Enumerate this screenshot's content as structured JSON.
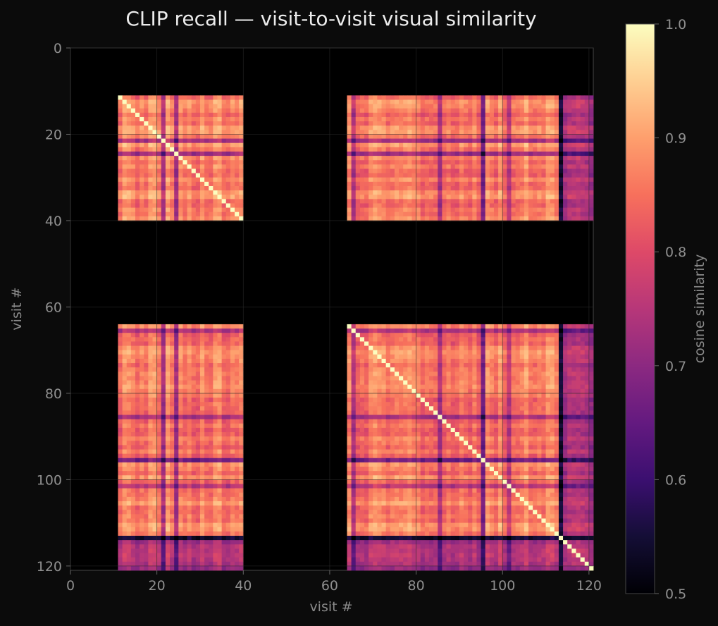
{
  "chart_data": {
    "type": "heatmap",
    "title": "CLIP recall — visit-to-visit visual similarity",
    "xlabel": "visit #",
    "ylabel": "visit #",
    "x_ticks": [
      0,
      20,
      40,
      60,
      80,
      100,
      120
    ],
    "y_ticks": [
      0,
      20,
      40,
      60,
      80,
      100,
      120
    ],
    "xlim": [
      0,
      121
    ],
    "ylim": [
      121,
      0
    ],
    "n_visits": 121,
    "colormap": "magma",
    "colorbar": {
      "label": "cosine similarity",
      "range": [
        0.5,
        1.0
      ],
      "ticks": [
        "0.5",
        "0.6",
        "0.7",
        "0.8",
        "0.9",
        "1.0"
      ]
    },
    "empty_value_color": "#050405",
    "visit_groups": [
      {
        "start": 11,
        "end": 39,
        "typical_similarity": 0.87
      },
      {
        "start": 64,
        "end": 112,
        "typical_similarity": 0.86
      },
      {
        "start": 113,
        "end": 113,
        "typical_similarity": 0.55
      },
      {
        "start": 114,
        "end": 120,
        "typical_similarity": 0.74
      }
    ],
    "diagonal_value": 1.0,
    "grid": true,
    "legend": "colorbar-right"
  },
  "colors": {
    "background": "#0b0b0b",
    "axes_face": "#000000",
    "grid": "#2a2a2a",
    "spine": "#444444"
  }
}
